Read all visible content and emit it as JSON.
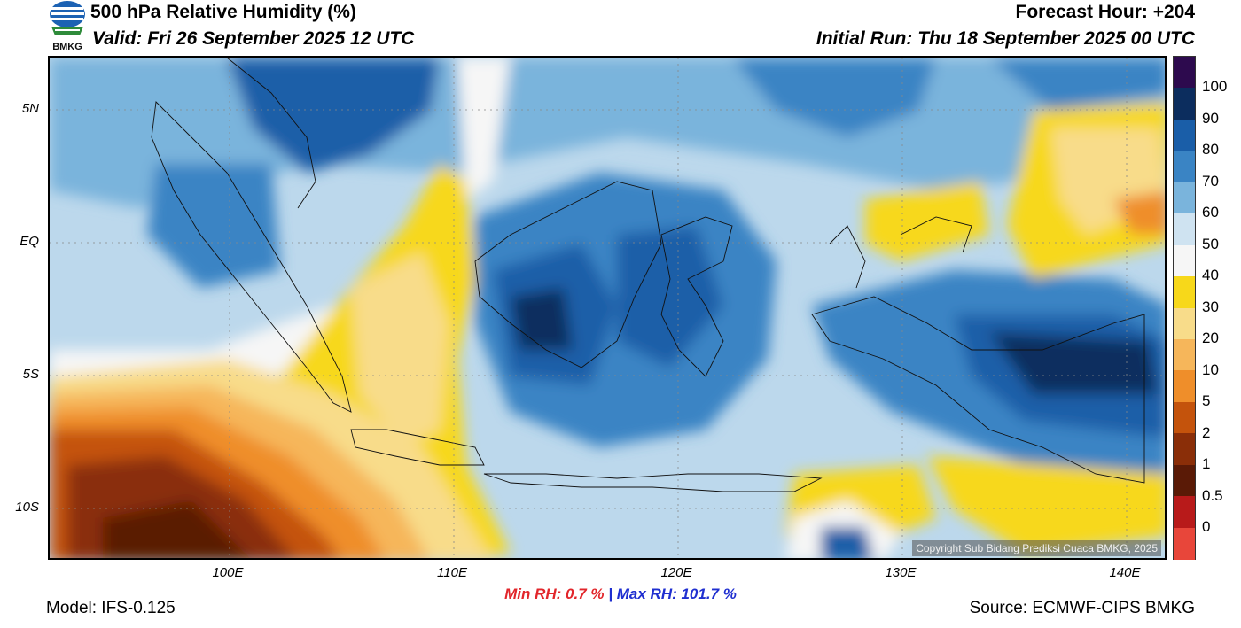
{
  "header": {
    "title": "500 hPa Relative Humidity (%)",
    "valid": "Valid: Fri 26 September 2025 12 UTC",
    "forecast_hour": "Forecast Hour: +204",
    "initial_run": "Initial Run: Thu 18 September 2025 00 UTC",
    "logo_text": "BMKG"
  },
  "map": {
    "copyright": "Copyright Sub Bidang Prediksi Cuaca BMKG, 2025",
    "lat_labels": [
      "5N",
      "EQ",
      "5S",
      "10S"
    ],
    "lon_labels": [
      "100E",
      "110E",
      "120E",
      "130E",
      "140E"
    ]
  },
  "colorbar": {
    "labels": [
      "100",
      "90",
      "80",
      "70",
      "60",
      "50",
      "40",
      "30",
      "20",
      "10",
      "5",
      "2",
      "1",
      "0.5",
      "0"
    ],
    "colors": [
      "#2d0a4e",
      "#0c2d5e",
      "#1a5ea8",
      "#3a84c4",
      "#7ab4dc",
      "#cfe3f1",
      "#f6f6f6",
      "#f7d81a",
      "#f8dc8a",
      "#f6b65a",
      "#ef8e2a",
      "#c4530c",
      "#8a2e08",
      "#5a1a06",
      "#b81a1a",
      "#e8463a"
    ]
  },
  "stats": {
    "min_rh": "Min RH:   0.7 %",
    "separator": "|",
    "max_rh": "Max RH: 101.7 %"
  },
  "footer": {
    "model": "Model: IFS-0.125",
    "source": "Source: ECMWF-CIPS BMKG"
  }
}
